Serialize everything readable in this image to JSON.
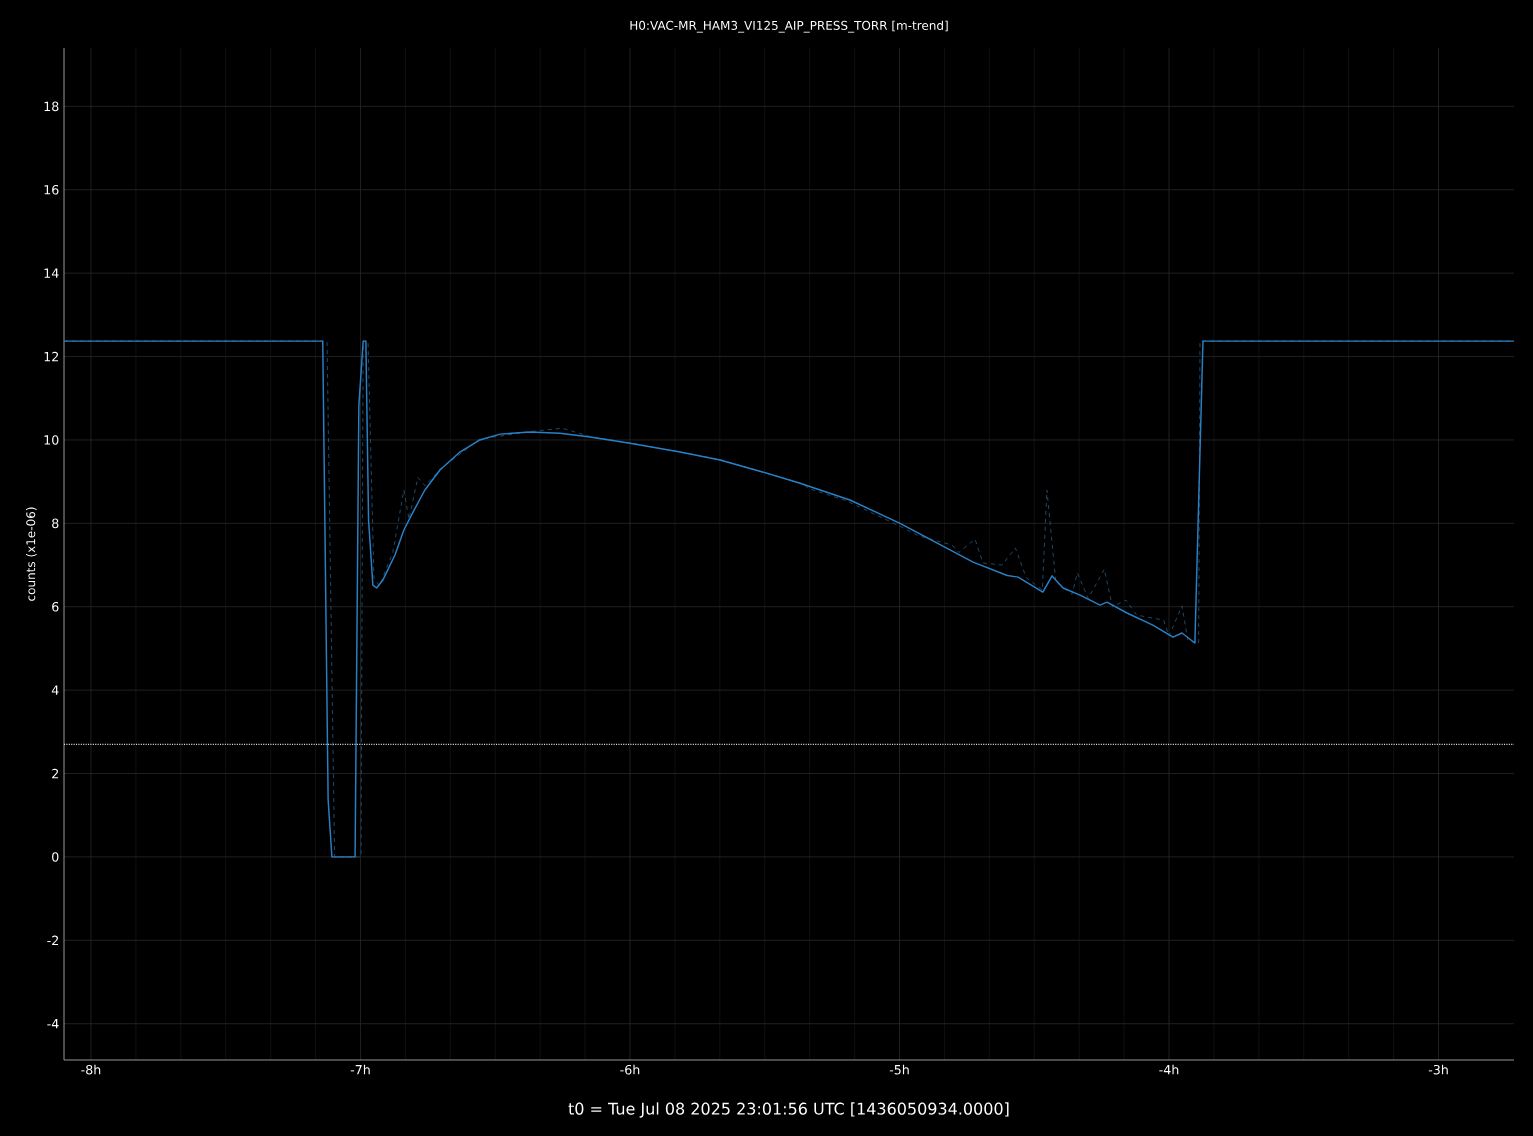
{
  "chart_data": {
    "type": "line",
    "title": "H0:VAC-MR_HAM3_VI125_AIP_PRESS_TORR [m-trend]",
    "xlabel": "t0 = Tue Jul 08 2025 23:01:56 UTC [1436050934.0000]",
    "ylabel": "counts (x1e-06)",
    "xlim": [
      -8.1,
      -2.72
    ],
    "ylim": [
      -4.87,
      19.4
    ],
    "xticks": [
      {
        "value": -8,
        "label": "-8h"
      },
      {
        "value": -7,
        "label": "-7h"
      },
      {
        "value": -6,
        "label": "-6h"
      },
      {
        "value": -5,
        "label": "-5h"
      },
      {
        "value": -4,
        "label": "-4h"
      },
      {
        "value": -3,
        "label": "-3h"
      }
    ],
    "yticks": [
      -4,
      -2,
      0,
      2,
      4,
      6,
      8,
      10,
      12,
      14,
      16,
      18
    ],
    "grid": true,
    "marker": "none",
    "series": [
      {
        "color": "#1f4f72",
        "line_style": "dashed",
        "x": [
          -8.1,
          -7.124,
          -7.096,
          -6.998,
          -6.99,
          -6.972,
          -6.95,
          -6.93,
          -6.88,
          -6.839,
          -6.82,
          -6.787,
          -6.76,
          -6.705,
          -6.557,
          -6.371,
          -6.25,
          -6.148,
          -6.0,
          -5.666,
          -5.369,
          -5.33,
          -5.2,
          -4.998,
          -4.93,
          -4.805,
          -4.78,
          -4.72,
          -4.69,
          -4.62,
          -4.57,
          -4.53,
          -4.47,
          -4.453,
          -4.42,
          -4.36,
          -4.34,
          -4.3,
          -4.24,
          -4.21,
          -4.16,
          -4.12,
          -4.02,
          -4.0,
          -3.952,
          -3.93,
          -3.89,
          -3.885,
          -2.72
        ],
        "values": [
          12.37,
          12.37,
          0,
          0,
          12.37,
          12.37,
          6.7,
          6.5,
          7.3,
          8.8,
          8.1,
          9.1,
          8.9,
          9.3,
          10.02,
          10.2,
          10.28,
          10.08,
          9.93,
          9.53,
          8.97,
          8.82,
          8.55,
          7.93,
          7.7,
          7.48,
          7.3,
          7.62,
          7.05,
          7.0,
          7.41,
          6.7,
          6.4,
          8.8,
          6.6,
          6.3,
          6.81,
          6.2,
          6.9,
          6.0,
          6.16,
          5.8,
          5.68,
          5.3,
          6.02,
          5.2,
          5.11,
          12.37,
          12.37
        ]
      },
      {
        "color": "#2a80c4",
        "line_style": "solid",
        "x": [
          -8.1,
          -7.14,
          -7.12,
          -7.106,
          -7.02,
          -7.006,
          -6.99,
          -6.98,
          -6.97,
          -6.954,
          -6.94,
          -6.917,
          -6.872,
          -6.839,
          -6.805,
          -6.761,
          -6.705,
          -6.631,
          -6.557,
          -6.482,
          -6.371,
          -6.26,
          -6.148,
          -6.0,
          -5.814,
          -5.666,
          -5.518,
          -5.369,
          -5.184,
          -4.998,
          -4.727,
          -4.6,
          -4.56,
          -4.468,
          -4.434,
          -4.393,
          -4.33,
          -4.256,
          -4.23,
          -4.156,
          -4.06,
          -3.985,
          -3.952,
          -3.904,
          -3.874,
          -2.72
        ],
        "values": [
          12.37,
          12.37,
          1.37,
          0,
          0,
          10.83,
          12.37,
          12.37,
          8.08,
          6.52,
          6.45,
          6.64,
          7.24,
          7.84,
          8.27,
          8.8,
          9.28,
          9.71,
          10.0,
          10.14,
          10.19,
          10.16,
          10.07,
          9.92,
          9.71,
          9.52,
          9.25,
          8.96,
          8.56,
          8.0,
          7.07,
          6.75,
          6.71,
          6.35,
          6.74,
          6.45,
          6.28,
          6.04,
          6.11,
          5.85,
          5.56,
          5.27,
          5.37,
          5.13,
          12.37,
          12.37
        ]
      }
    ],
    "ref_lines": [
      {
        "axis": "y",
        "value": 2.7,
        "color": "#e0e0e0",
        "line_style": "dotted"
      }
    ]
  }
}
